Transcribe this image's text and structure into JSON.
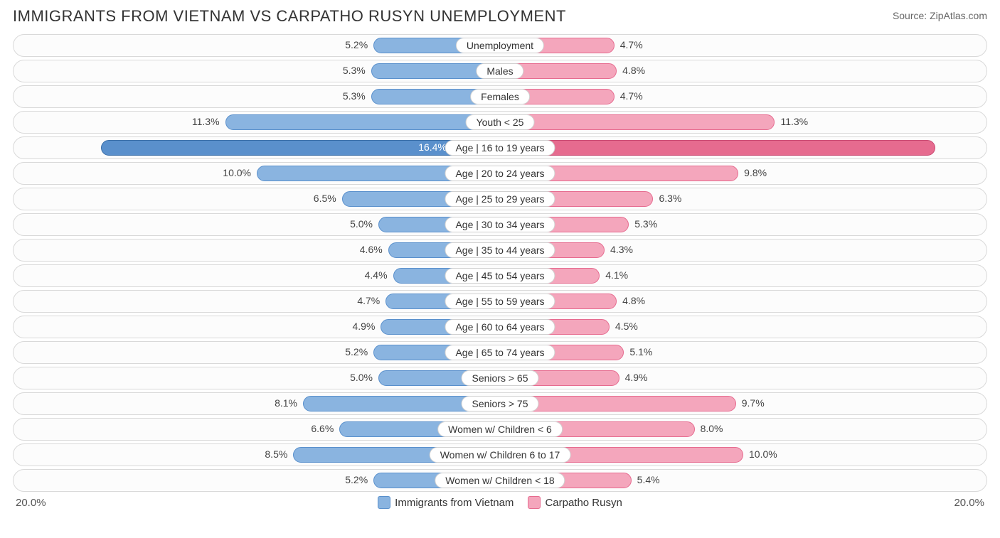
{
  "title": "IMMIGRANTS FROM VIETNAM VS CARPATHO RUSYN UNEMPLOYMENT",
  "source": "Source: ZipAtlas.com",
  "axis_max_label": "20.0%",
  "axis_max": 20.0,
  "series_a": {
    "name": "Immigrants from Vietnam",
    "color": "#8ab4e0",
    "border": "#5a90cc",
    "hl_color": "#5a90cc"
  },
  "series_b": {
    "name": "Carpatho Rusyn",
    "color": "#f4a6bc",
    "border": "#e66b8f",
    "hl_color": "#e66b8f"
  },
  "highlight_index": 4,
  "track_border": "#d9d9d9",
  "track_bg": "#fcfcfc",
  "rows": [
    {
      "label": "Unemployment",
      "a": 5.2,
      "b": 4.7
    },
    {
      "label": "Males",
      "a": 5.3,
      "b": 4.8
    },
    {
      "label": "Females",
      "a": 5.3,
      "b": 4.7
    },
    {
      "label": "Youth < 25",
      "a": 11.3,
      "b": 11.3
    },
    {
      "label": "Age | 16 to 19 years",
      "a": 16.4,
      "b": 17.9
    },
    {
      "label": "Age | 20 to 24 years",
      "a": 10.0,
      "b": 9.8
    },
    {
      "label": "Age | 25 to 29 years",
      "a": 6.5,
      "b": 6.3
    },
    {
      "label": "Age | 30 to 34 years",
      "a": 5.0,
      "b": 5.3
    },
    {
      "label": "Age | 35 to 44 years",
      "a": 4.6,
      "b": 4.3
    },
    {
      "label": "Age | 45 to 54 years",
      "a": 4.4,
      "b": 4.1
    },
    {
      "label": "Age | 55 to 59 years",
      "a": 4.7,
      "b": 4.8
    },
    {
      "label": "Age | 60 to 64 years",
      "a": 4.9,
      "b": 4.5
    },
    {
      "label": "Age | 65 to 74 years",
      "a": 5.2,
      "b": 5.1
    },
    {
      "label": "Seniors > 65",
      "a": 5.0,
      "b": 4.9
    },
    {
      "label": "Seniors > 75",
      "a": 8.1,
      "b": 9.7
    },
    {
      "label": "Women w/ Children < 6",
      "a": 6.6,
      "b": 8.0
    },
    {
      "label": "Women w/ Children 6 to 17",
      "a": 8.5,
      "b": 10.0
    },
    {
      "label": "Women w/ Children < 18",
      "a": 5.2,
      "b": 5.4
    }
  ]
}
